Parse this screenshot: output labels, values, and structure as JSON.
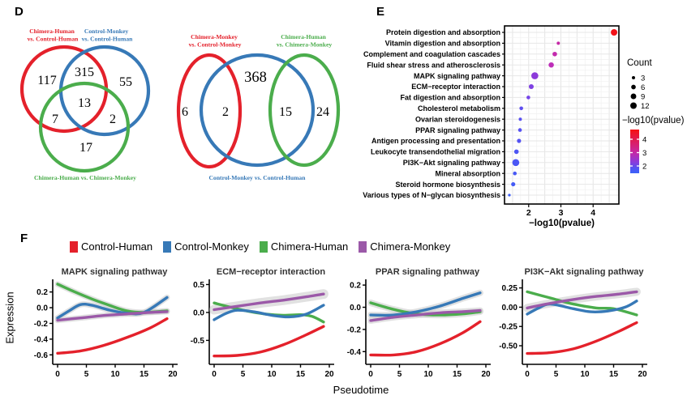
{
  "figure": {
    "panel_d_label": "D",
    "panel_e_label": "E",
    "panel_f_label": "F"
  },
  "panels": {
    "f": {
      "xlabel": "Pseudotime",
      "ylabel": "Expression",
      "legend": [
        {
          "label": "Control-Human",
          "color": "#e4212b"
        },
        {
          "label": "Control-Monkey",
          "color": "#3779b7"
        },
        {
          "label": "Chimera-Human",
          "color": "#4bad4c"
        },
        {
          "label": "Chimera-Monkey",
          "color": "#9b59a8"
        }
      ]
    }
  },
  "chart_data": [
    {
      "type": "venn",
      "id": "venn-left",
      "sets": [
        {
          "name": "Chimera-Human vs. Control-Human",
          "label_lines": [
            "Chimera-Human",
            "vs. Control-Human"
          ],
          "color": "#e4212b"
        },
        {
          "name": "Control-Monkey vs. Control-Human",
          "label_lines": [
            "Control-Monkey",
            "vs. Control-Human"
          ],
          "color": "#3779b7"
        },
        {
          "name": "Chimera-Human vs. Chimera-Monkey",
          "label_lines": [
            "Chimera-Human vs. Chimera-Monkey"
          ],
          "color": "#4bad4c"
        }
      ],
      "regions": [
        {
          "region": "red only",
          "value": 117
        },
        {
          "region": "red and blue",
          "value": 315
        },
        {
          "region": "blue only",
          "value": 55
        },
        {
          "region": "red and green",
          "value": 7
        },
        {
          "region": "all three",
          "value": 13
        },
        {
          "region": "blue and green",
          "value": 2
        },
        {
          "region": "green only",
          "value": 17
        }
      ]
    },
    {
      "type": "venn",
      "id": "venn-right",
      "sets": [
        {
          "name": "Chimera-Monkey vs. Control-Monkey",
          "label_lines": [
            "Chimera-Monkey",
            "vs. Control-Monkey"
          ],
          "color": "#e4212b"
        },
        {
          "name": "Control-Monkey vs. Control-Human",
          "label_lines": [
            "Control-Monkey vs. Control-Human"
          ],
          "color": "#3779b7"
        },
        {
          "name": "Chimera-Human vs. Chimera-Monkey",
          "label_lines": [
            "Chimera-Human",
            "vs. Chimera-Monkey"
          ],
          "color": "#4bad4c"
        }
      ],
      "regions": [
        {
          "region": "red only",
          "value": 6
        },
        {
          "region": "red and blue",
          "value": 2
        },
        {
          "region": "blue only",
          "value": 368
        },
        {
          "region": "blue and green",
          "value": 15
        },
        {
          "region": "green only",
          "value": 24
        }
      ]
    },
    {
      "type": "scatter",
      "variant": "dot-plot",
      "xlabel": "−log10(pvalue)",
      "x_ticks": [
        2,
        3,
        4
      ],
      "xlim": [
        1.25,
        4.8
      ],
      "grid": true,
      "rows": [
        {
          "pathway": "Protein digestion and absorption",
          "neglog10p": 4.65,
          "count": 12,
          "color": "#f31219"
        },
        {
          "pathway": "Vitamin digestion and absorption",
          "neglog10p": 2.92,
          "count": 3,
          "color": "#c528a6"
        },
        {
          "pathway": "Complement and coagulation cascades",
          "neglog10p": 2.81,
          "count": 6,
          "color": "#c32aad"
        },
        {
          "pathway": "Fluid shear stress and atherosclerosis",
          "neglog10p": 2.7,
          "count": 8,
          "color": "#bd2db8"
        },
        {
          "pathway": "MAPK signaling pathway",
          "neglog10p": 2.19,
          "count": 14,
          "color": "#8c3ada"
        },
        {
          "pathway": "ECM−receptor interaction",
          "neglog10p": 2.08,
          "count": 7,
          "color": "#7f41e3"
        },
        {
          "pathway": "Fat digestion and absorption",
          "neglog10p": 1.99,
          "count": 4,
          "color": "#7544e9"
        },
        {
          "pathway": "Cholesterol metabolism",
          "neglog10p": 1.77,
          "count": 4,
          "color": "#5e4ef0"
        },
        {
          "pathway": "Ovarian steroidogenesis",
          "neglog10p": 1.74,
          "count": 3,
          "color": "#5950f2"
        },
        {
          "pathway": "PPAR signaling pathway",
          "neglog10p": 1.73,
          "count": 4,
          "color": "#5751f2"
        },
        {
          "pathway": "Antigen processing and presentation",
          "neglog10p": 1.7,
          "count": 5,
          "color": "#5452f3"
        },
        {
          "pathway": "Leukocyte transendothelial migration",
          "neglog10p": 1.62,
          "count": 6,
          "color": "#4d56f4"
        },
        {
          "pathway": "PI3K−Akt signaling pathway",
          "neglog10p": 1.6,
          "count": 14,
          "color": "#4b57f5"
        },
        {
          "pathway": "Mineral absorption",
          "neglog10p": 1.57,
          "count": 4,
          "color": "#4859f5"
        },
        {
          "pathway": "Steroid hormone biosynthesis",
          "neglog10p": 1.52,
          "count": 5,
          "color": "#445bf6"
        },
        {
          "pathway": "Various types of N−glycan biosynthesis",
          "neglog10p": 1.4,
          "count": 2,
          "color": "#3c5ff8"
        }
      ],
      "legend": {
        "count_title": "Count",
        "count_items": [
          3,
          6,
          9,
          12
        ],
        "color_title": "−log10(pvalue)",
        "color_ticks": [
          4,
          3,
          2
        ],
        "gradient": [
          [
            "0%",
            "#f80c16"
          ],
          [
            "3%",
            "#f31219"
          ],
          [
            "53%",
            "#c528a6"
          ],
          [
            "74%",
            "#8c3ada"
          ],
          [
            "91%",
            "#4b57f5"
          ],
          [
            "100%",
            "#3a62f8"
          ]
        ]
      }
    },
    {
      "type": "line",
      "title": "MAPK signaling pathway",
      "x_ticks": [
        0,
        5,
        10,
        15,
        20
      ],
      "y_ticks": [
        "0.2",
        "0.0",
        "-0.2",
        "-0.4",
        "-0.6"
      ],
      "ylim": [
        -0.7,
        0.33
      ],
      "series": [
        {
          "name": "Chimera-Human",
          "color": "#4bad4c",
          "band": true,
          "band_width": 7,
          "points": [
            [
              0,
              0.3
            ],
            [
              3,
              0.2
            ],
            [
              6,
              0.11
            ],
            [
              9,
              0.03
            ],
            [
              12,
              -0.04
            ],
            [
              15,
              -0.06
            ],
            [
              19,
              -0.04
            ]
          ]
        },
        {
          "name": "Control-Monkey",
          "color": "#3779b7",
          "band": true,
          "band_width": 7,
          "points": [
            [
              0,
              -0.13
            ],
            [
              2,
              -0.04
            ],
            [
              4,
              0.04
            ],
            [
              6,
              0.03
            ],
            [
              9,
              -0.03
            ],
            [
              12,
              -0.07
            ],
            [
              15,
              -0.06
            ],
            [
              19,
              0.13
            ]
          ]
        },
        {
          "name": "Chimera-Monkey",
          "color": "#9b59a8",
          "band": true,
          "band_width": 7,
          "points": [
            [
              0,
              -0.16
            ],
            [
              4,
              -0.13
            ],
            [
              8,
              -0.1
            ],
            [
              12,
              -0.08
            ],
            [
              16,
              -0.06
            ],
            [
              19,
              -0.05
            ]
          ]
        },
        {
          "name": "Control-Human",
          "color": "#e4212b",
          "band": false,
          "points": [
            [
              0,
              -0.58
            ],
            [
              4,
              -0.55
            ],
            [
              8,
              -0.48
            ],
            [
              12,
              -0.38
            ],
            [
              16,
              -0.26
            ],
            [
              19,
              -0.14
            ]
          ]
        }
      ]
    },
    {
      "type": "line",
      "title": "ECM−receptor interaction",
      "x_ticks": [
        0,
        5,
        10,
        15,
        20
      ],
      "y_ticks": [
        "0.5",
        "0.0",
        "-0.5"
      ],
      "ylim": [
        -0.9,
        0.55
      ],
      "series": [
        {
          "name": "Chimera-Human",
          "color": "#4bad4c",
          "band": false,
          "points": [
            [
              0,
              0.17
            ],
            [
              3,
              0.09
            ],
            [
              6,
              0.02
            ],
            [
              9,
              -0.03
            ],
            [
              12,
              -0.05
            ],
            [
              15,
              -0.04
            ],
            [
              17,
              -0.07
            ],
            [
              19,
              -0.17
            ]
          ]
        },
        {
          "name": "Control-Monkey",
          "color": "#3779b7",
          "band": false,
          "points": [
            [
              0,
              -0.13
            ],
            [
              2,
              -0.02
            ],
            [
              4,
              0.04
            ],
            [
              7,
              0.01
            ],
            [
              10,
              -0.05
            ],
            [
              13,
              -0.08
            ],
            [
              16,
              -0.03
            ],
            [
              19,
              0.13
            ]
          ]
        },
        {
          "name": "Chimera-Monkey",
          "color": "#9b59a8",
          "band": true,
          "band_width": 12,
          "points": [
            [
              0,
              0.05
            ],
            [
              4,
              0.11
            ],
            [
              8,
              0.17
            ],
            [
              12,
              0.22
            ],
            [
              16,
              0.28
            ],
            [
              19,
              0.33
            ]
          ]
        },
        {
          "name": "Control-Human",
          "color": "#e4212b",
          "band": false,
          "points": [
            [
              0,
              -0.78
            ],
            [
              4,
              -0.77
            ],
            [
              8,
              -0.71
            ],
            [
              12,
              -0.58
            ],
            [
              16,
              -0.4
            ],
            [
              19,
              -0.25
            ]
          ]
        }
      ]
    },
    {
      "type": "line",
      "title": "PPAR signaling pathway",
      "x_ticks": [
        0,
        5,
        10,
        15,
        20
      ],
      "y_ticks": [
        "0.2",
        "0.0",
        "-0.2",
        "-0.4"
      ],
      "ylim": [
        -0.5,
        0.23
      ],
      "series": [
        {
          "name": "Chimera-Human",
          "color": "#4bad4c",
          "band": true,
          "band_width": 8,
          "points": [
            [
              0,
              0.04
            ],
            [
              4,
              -0.02
            ],
            [
              8,
              -0.06
            ],
            [
              12,
              -0.07
            ],
            [
              16,
              -0.06
            ],
            [
              19,
              -0.04
            ]
          ]
        },
        {
          "name": "Control-Monkey",
          "color": "#3779b7",
          "band": true,
          "band_width": 8,
          "points": [
            [
              0,
              -0.07
            ],
            [
              4,
              -0.07
            ],
            [
              8,
              -0.04
            ],
            [
              12,
              0.01
            ],
            [
              16,
              0.08
            ],
            [
              19,
              0.13
            ]
          ]
        },
        {
          "name": "Chimera-Monkey",
          "color": "#9b59a8",
          "band": true,
          "band_width": 8,
          "points": [
            [
              0,
              -0.12
            ],
            [
              4,
              -0.09
            ],
            [
              8,
              -0.07
            ],
            [
              12,
              -0.05
            ],
            [
              16,
              -0.04
            ],
            [
              19,
              -0.03
            ]
          ]
        },
        {
          "name": "Control-Human",
          "color": "#e4212b",
          "band": false,
          "points": [
            [
              0,
              -0.43
            ],
            [
              4,
              -0.43
            ],
            [
              8,
              -0.4
            ],
            [
              12,
              -0.33
            ],
            [
              16,
              -0.23
            ],
            [
              19,
              -0.13
            ]
          ]
        }
      ]
    },
    {
      "type": "line",
      "title": "PI3K−Akt signaling pathway",
      "x_ticks": [
        0,
        5,
        10,
        15,
        20
      ],
      "y_ticks": [
        "0.25",
        "0.00",
        "-0.25",
        "-0.50"
      ],
      "ylim": [
        -0.72,
        0.33
      ],
      "series": [
        {
          "name": "Chimera-Human",
          "color": "#4bad4c",
          "band": false,
          "points": [
            [
              0,
              0.2
            ],
            [
              4,
              0.12
            ],
            [
              8,
              0.04
            ],
            [
              12,
              -0.01
            ],
            [
              15,
              -0.02
            ],
            [
              19,
              -0.1
            ]
          ]
        },
        {
          "name": "Control-Monkey",
          "color": "#3779b7",
          "band": false,
          "points": [
            [
              0,
              -0.09
            ],
            [
              2,
              -0.01
            ],
            [
              4,
              0.04
            ],
            [
              8,
              -0.02
            ],
            [
              11,
              -0.06
            ],
            [
              14,
              -0.05
            ],
            [
              17,
              0.0
            ],
            [
              19,
              0.08
            ]
          ]
        },
        {
          "name": "Chimera-Monkey",
          "color": "#9b59a8",
          "band": true,
          "band_width": 10,
          "points": [
            [
              0,
              -0.01
            ],
            [
              4,
              0.05
            ],
            [
              8,
              0.1
            ],
            [
              12,
              0.14
            ],
            [
              16,
              0.17
            ],
            [
              19,
              0.2
            ]
          ]
        },
        {
          "name": "Control-Human",
          "color": "#e4212b",
          "band": false,
          "points": [
            [
              0,
              -0.6
            ],
            [
              4,
              -0.59
            ],
            [
              8,
              -0.54
            ],
            [
              12,
              -0.44
            ],
            [
              16,
              -0.31
            ],
            [
              19,
              -0.2
            ]
          ]
        }
      ]
    }
  ]
}
